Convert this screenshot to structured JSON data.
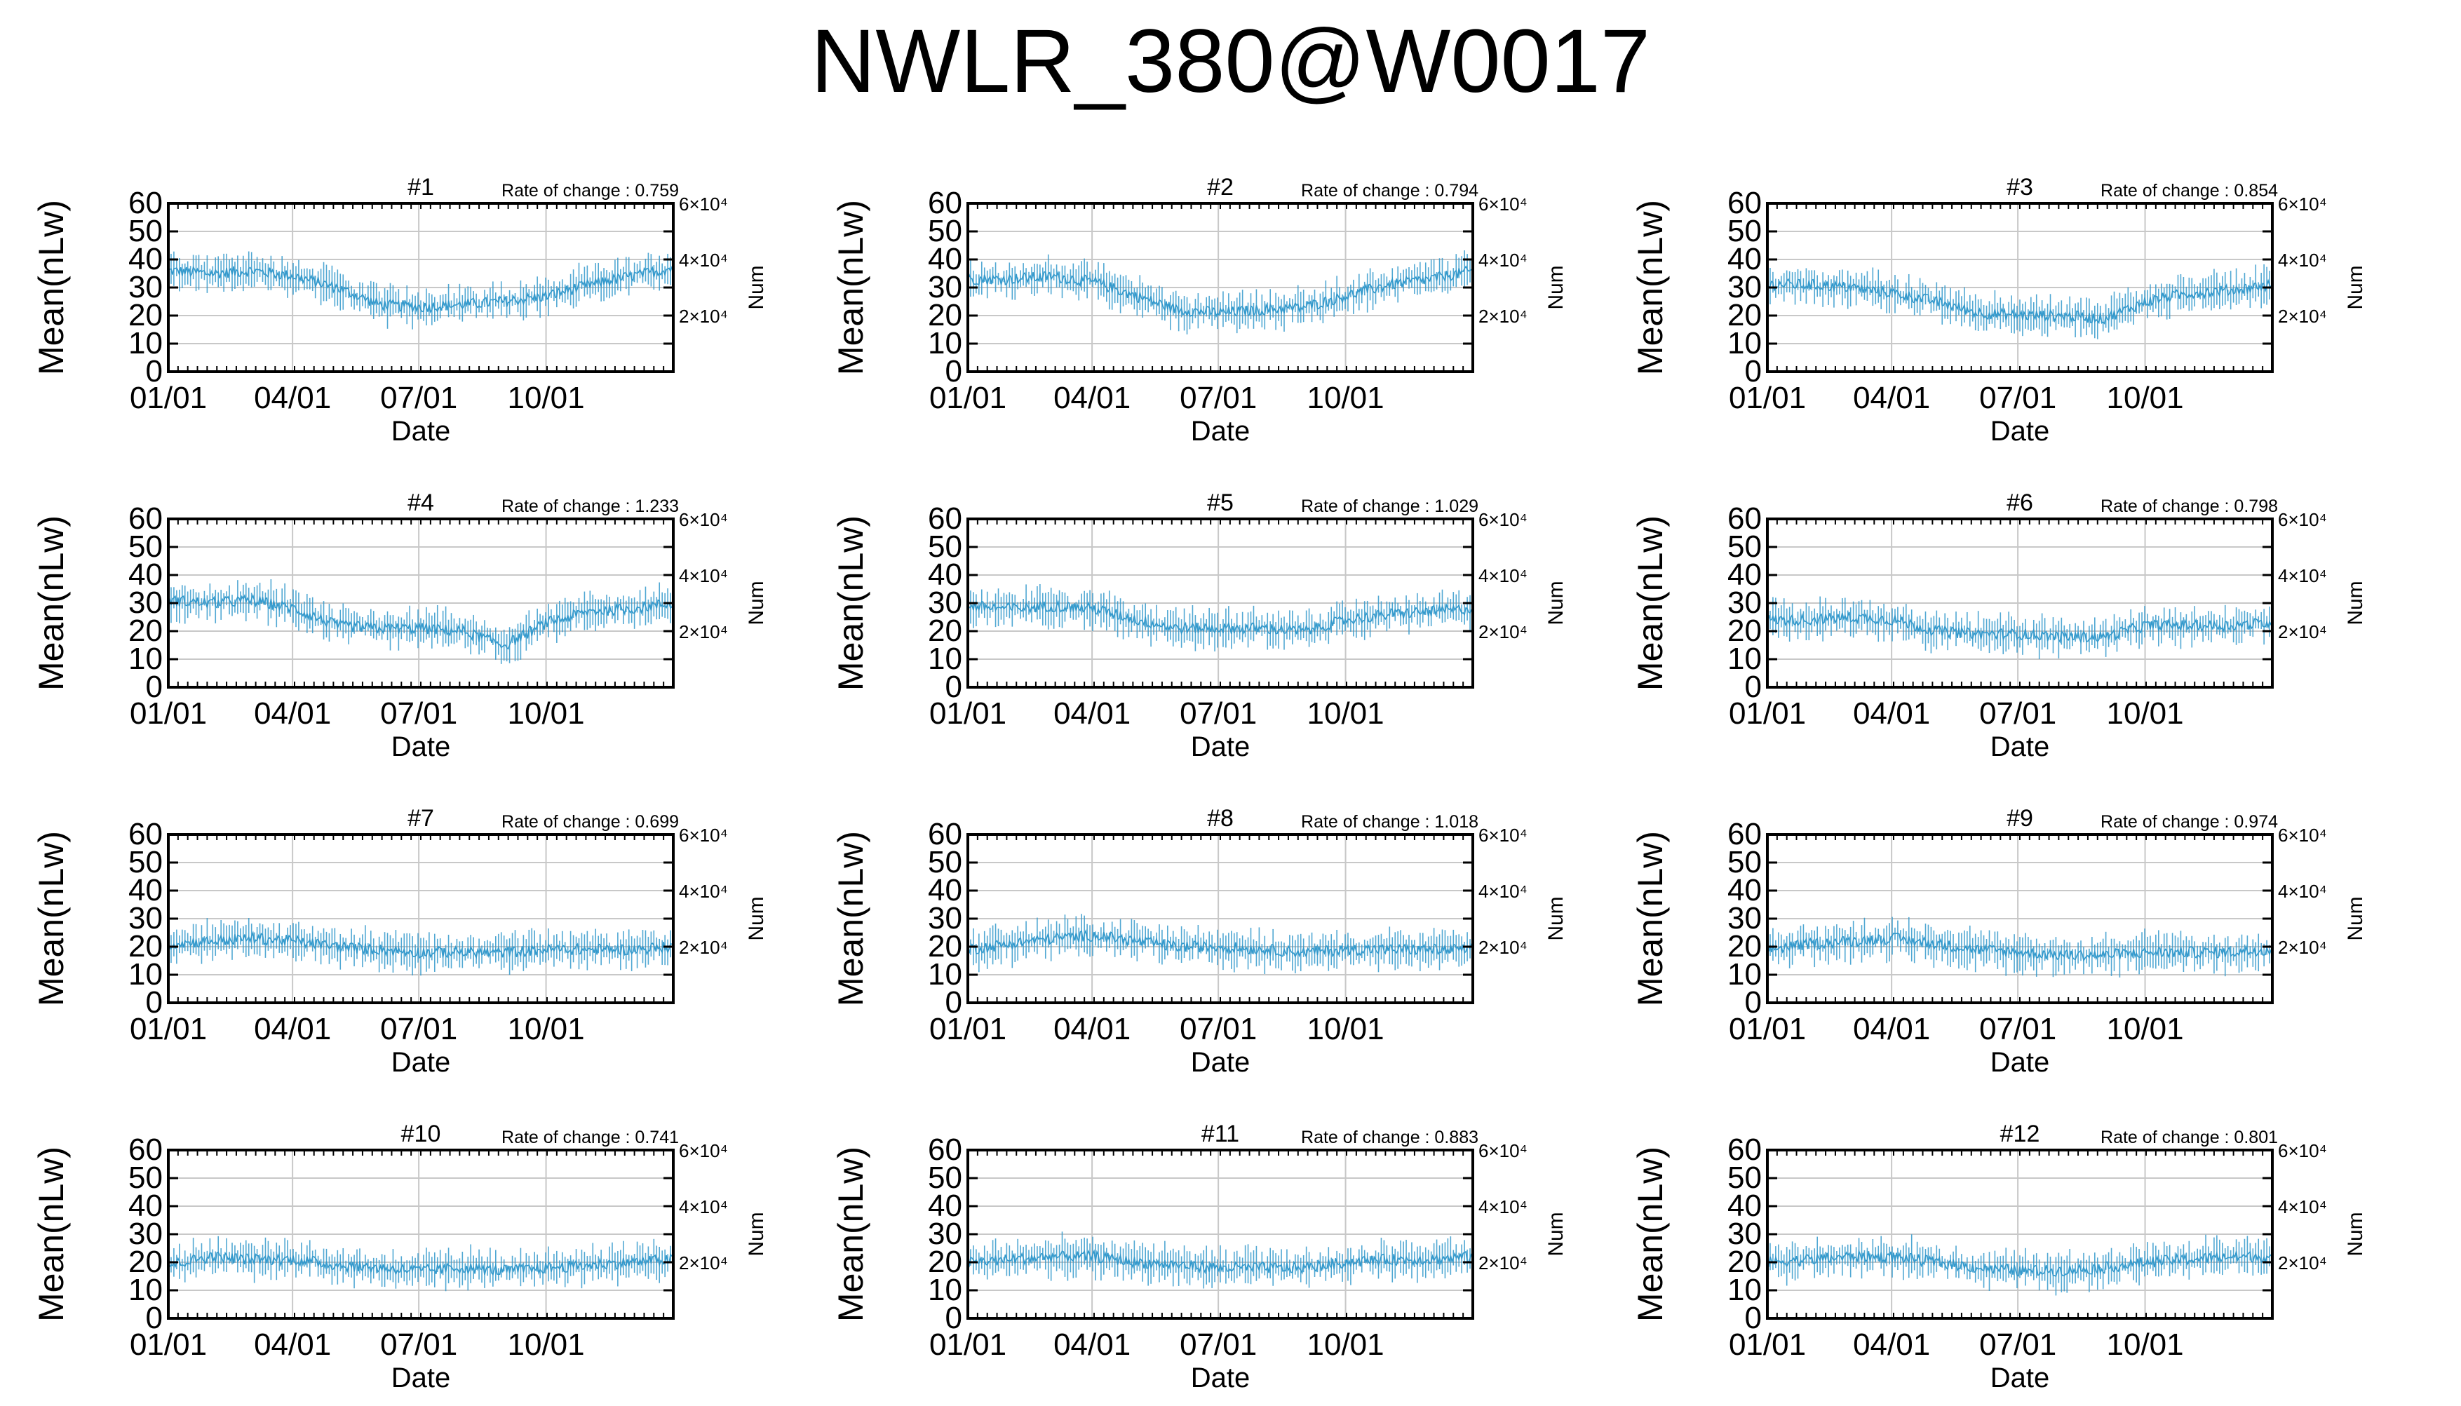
{
  "title": "NWLR_380@W0017",
  "colors": {
    "series": "#3399cc",
    "grid": "#c8c8c8",
    "axis": "#000000"
  },
  "common": {
    "xlabel": "Date",
    "ylabel": "Mean(nLw)",
    "y2label": "Num",
    "xticks": [
      "01/01",
      "04/01",
      "07/01",
      "10/01"
    ],
    "yticks": [
      "0",
      "10",
      "20",
      "30",
      "40",
      "50",
      "60"
    ],
    "y2ticks": [
      "2×10⁴",
      "4×10⁴",
      "6×10⁴"
    ],
    "ylim": [
      0,
      60
    ],
    "rate_prefix": "Rate of change : "
  },
  "chart_data": [
    {
      "type": "line",
      "title": "#1",
      "rate_of_change": "0.759",
      "xlabel": "Date",
      "ylabel": "Mean(nLw)",
      "ylim": [
        0,
        60
      ],
      "y2label": "Num",
      "y2lim": [
        0,
        60000
      ],
      "x": [
        "01/01",
        "02/01",
        "03/01",
        "04/01",
        "05/01",
        "06/01",
        "07/01",
        "08/01",
        "09/01",
        "10/01",
        "11/01",
        "12/01",
        "12/31"
      ],
      "values": [
        36,
        35,
        36,
        34,
        30,
        24,
        23,
        24,
        25,
        27,
        31,
        34,
        37
      ]
    },
    {
      "type": "line",
      "title": "#2",
      "rate_of_change": "0.794",
      "xlabel": "Date",
      "ylabel": "Mean(nLw)",
      "ylim": [
        0,
        60
      ],
      "y2label": "Num",
      "y2lim": [
        0,
        60000
      ],
      "x": [
        "01/01",
        "02/01",
        "03/01",
        "04/01",
        "05/01",
        "06/01",
        "07/01",
        "08/01",
        "09/01",
        "10/01",
        "11/01",
        "12/01",
        "12/31"
      ],
      "values": [
        33,
        33,
        34,
        32,
        27,
        22,
        21,
        22,
        23,
        27,
        31,
        33,
        36
      ]
    },
    {
      "type": "line",
      "title": "#3",
      "rate_of_change": "0.854",
      "xlabel": "Date",
      "ylabel": "Mean(nLw)",
      "ylim": [
        0,
        60
      ],
      "y2label": "Num",
      "y2lim": [
        0,
        60000
      ],
      "x": [
        "01/01",
        "02/01",
        "03/01",
        "04/01",
        "05/01",
        "06/01",
        "07/01",
        "08/01",
        "09/01",
        "10/01",
        "11/01",
        "12/01",
        "12/31"
      ],
      "values": [
        31,
        31,
        30,
        28,
        25,
        21,
        20,
        20,
        19,
        25,
        28,
        29,
        31
      ]
    },
    {
      "type": "line",
      "title": "#4",
      "rate_of_change": "1.233",
      "xlabel": "Date",
      "ylabel": "Mean(nLw)",
      "ylim": [
        0,
        60
      ],
      "y2label": "Num",
      "y2lim": [
        0,
        60000
      ],
      "x": [
        "01/01",
        "02/01",
        "03/01",
        "04/01",
        "05/01",
        "06/01",
        "07/01",
        "08/01",
        "09/01",
        "10/01",
        "11/01",
        "12/01",
        "12/31"
      ],
      "values": [
        31,
        30,
        31,
        28,
        22,
        21,
        21,
        20,
        15,
        23,
        27,
        28,
        30
      ]
    },
    {
      "type": "line",
      "title": "#5",
      "rate_of_change": "1.029",
      "xlabel": "Date",
      "ylabel": "Mean(nLw)",
      "ylim": [
        0,
        60
      ],
      "y2label": "Num",
      "y2lim": [
        0,
        60000
      ],
      "x": [
        "01/01",
        "02/01",
        "03/01",
        "04/01",
        "05/01",
        "06/01",
        "07/01",
        "08/01",
        "09/01",
        "10/01",
        "11/01",
        "12/01",
        "12/31"
      ],
      "values": [
        29,
        28,
        29,
        28,
        24,
        21,
        21,
        21,
        20,
        24,
        26,
        27,
        28
      ]
    },
    {
      "type": "line",
      "title": "#6",
      "rate_of_change": "0.798",
      "xlabel": "Date",
      "ylabel": "Mean(nLw)",
      "ylim": [
        0,
        60
      ],
      "y2label": "Num",
      "y2lim": [
        0,
        60000
      ],
      "x": [
        "01/01",
        "02/01",
        "03/01",
        "04/01",
        "05/01",
        "06/01",
        "07/01",
        "08/01",
        "09/01",
        "10/01",
        "11/01",
        "12/01",
        "12/31"
      ],
      "values": [
        24,
        24,
        25,
        24,
        20,
        19,
        19,
        18,
        18,
        22,
        22,
        22,
        23
      ]
    },
    {
      "type": "line",
      "title": "#7",
      "rate_of_change": "0.699",
      "xlabel": "Date",
      "ylabel": "Mean(nLw)",
      "ylim": [
        0,
        60
      ],
      "y2label": "Num",
      "y2lim": [
        0,
        60000
      ],
      "x": [
        "01/01",
        "02/01",
        "03/01",
        "04/01",
        "05/01",
        "06/01",
        "07/01",
        "08/01",
        "09/01",
        "10/01",
        "11/01",
        "12/01",
        "12/31"
      ],
      "values": [
        21,
        22,
        23,
        22,
        20,
        19,
        18,
        18,
        18,
        19,
        19,
        19,
        20
      ]
    },
    {
      "type": "line",
      "title": "#8",
      "rate_of_change": "1.018",
      "xlabel": "Date",
      "ylabel": "Mean(nLw)",
      "ylim": [
        0,
        60
      ],
      "y2label": "Num",
      "y2lim": [
        0,
        60000
      ],
      "x": [
        "01/01",
        "02/01",
        "03/01",
        "04/01",
        "05/01",
        "06/01",
        "07/01",
        "08/01",
        "09/01",
        "10/01",
        "11/01",
        "12/01",
        "12/31"
      ],
      "values": [
        19,
        21,
        23,
        24,
        22,
        20,
        20,
        19,
        18,
        19,
        19,
        19,
        19
      ]
    },
    {
      "type": "line",
      "title": "#9",
      "rate_of_change": "0.974",
      "xlabel": "Date",
      "ylabel": "Mean(nLw)",
      "ylim": [
        0,
        60
      ],
      "y2label": "Num",
      "y2lim": [
        0,
        60000
      ],
      "x": [
        "01/01",
        "02/01",
        "03/01",
        "04/01",
        "05/01",
        "06/01",
        "07/01",
        "08/01",
        "09/01",
        "10/01",
        "11/01",
        "12/01",
        "12/31"
      ],
      "values": [
        19,
        21,
        22,
        23,
        21,
        19,
        18,
        17,
        17,
        18,
        18,
        18,
        19
      ]
    },
    {
      "type": "line",
      "title": "#10",
      "rate_of_change": "0.741",
      "xlabel": "Date",
      "ylabel": "Mean(nLw)",
      "ylim": [
        0,
        60
      ],
      "y2label": "Num",
      "y2lim": [
        0,
        60000
      ],
      "x": [
        "01/01",
        "02/01",
        "03/01",
        "04/01",
        "05/01",
        "06/01",
        "07/01",
        "08/01",
        "09/01",
        "10/01",
        "11/01",
        "12/01",
        "12/31"
      ],
      "values": [
        19,
        22,
        21,
        21,
        19,
        18,
        17,
        18,
        17,
        18,
        19,
        20,
        21
      ]
    },
    {
      "type": "line",
      "title": "#11",
      "rate_of_change": "0.883",
      "xlabel": "Date",
      "ylabel": "Mean(nLw)",
      "ylim": [
        0,
        60
      ],
      "y2label": "Num",
      "y2lim": [
        0,
        60000
      ],
      "x": [
        "01/01",
        "02/01",
        "03/01",
        "04/01",
        "05/01",
        "06/01",
        "07/01",
        "08/01",
        "09/01",
        "10/01",
        "11/01",
        "12/01",
        "12/31"
      ],
      "values": [
        20,
        21,
        22,
        22,
        20,
        19,
        18,
        18,
        18,
        20,
        21,
        21,
        22
      ]
    },
    {
      "type": "line",
      "title": "#12",
      "rate_of_change": "0.801",
      "xlabel": "Date",
      "ylabel": "Mean(nLw)",
      "ylim": [
        0,
        60
      ],
      "y2label": "Num",
      "y2lim": [
        0,
        60000
      ],
      "x": [
        "01/01",
        "02/01",
        "03/01",
        "04/01",
        "05/01",
        "06/01",
        "07/01",
        "08/01",
        "09/01",
        "10/01",
        "11/01",
        "12/01",
        "12/31"
      ],
      "values": [
        20,
        21,
        22,
        22,
        20,
        18,
        17,
        17,
        18,
        20,
        21,
        22,
        22
      ]
    }
  ]
}
